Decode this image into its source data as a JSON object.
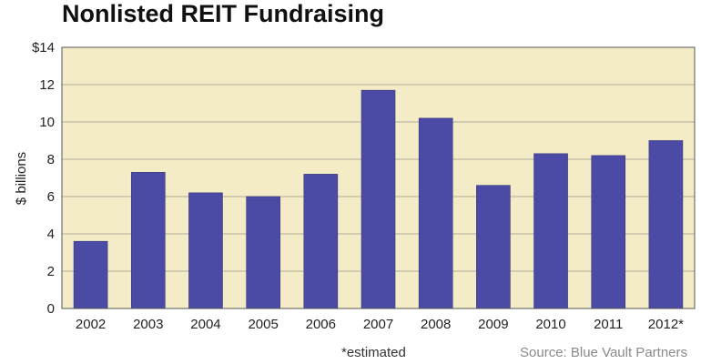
{
  "chart_data": {
    "type": "bar",
    "title": "Nonlisted REIT Fundraising",
    "ylabel": "$ billions",
    "xlabel": "",
    "categories": [
      "2002",
      "2003",
      "2004",
      "2005",
      "2006",
      "2007",
      "2008",
      "2009",
      "2010",
      "2011",
      "2012*"
    ],
    "values": [
      3.6,
      7.3,
      6.2,
      6.0,
      7.2,
      11.7,
      10.2,
      6.6,
      8.3,
      8.2,
      9.0
    ],
    "ylim": [
      0,
      14
    ],
    "yticks": [
      0,
      2,
      4,
      6,
      8,
      10,
      12,
      14
    ],
    "yticklabels": [
      "0",
      "2",
      "4",
      "6",
      "8",
      "10",
      "12",
      "$14"
    ],
    "grid": true,
    "footnote": "*estimated",
    "source": "Source: Blue Vault Partners"
  },
  "colors": {
    "plot_background": "#f3ecc7",
    "bar": "#4b4ba6",
    "bar_edge": "#35357a",
    "grid": "#9a9a8a",
    "border": "#555555"
  }
}
